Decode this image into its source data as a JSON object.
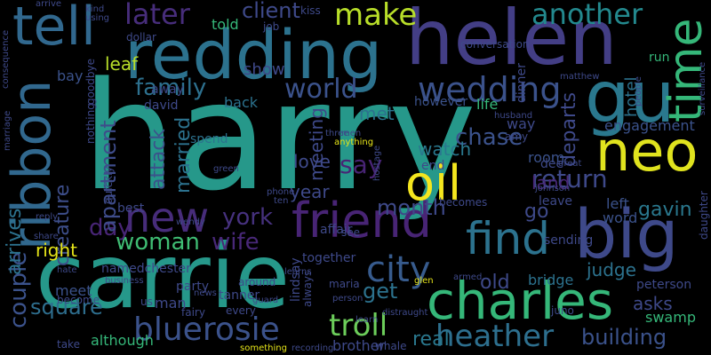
{
  "words": {
    "harry": "harry",
    "carrie": "carrie",
    "redding": "redding",
    "helen": "helen",
    "gu": "gu",
    "big": "big",
    "ribbon": "ribbon",
    "tell": "tell",
    "neo": "neo",
    "charles": "charles",
    "friend": "friend",
    "new": "new",
    "find": "find",
    "oil": "oil",
    "time": "time",
    "wedding": "wedding",
    "city": "city",
    "bluerosie": "bluerosie",
    "troll": "troll",
    "heather": "heather",
    "another": "another",
    "make": "make",
    "later": "later",
    "world": "world",
    "family": "family",
    "woman": "woman",
    "wife": "wife",
    "york": "york",
    "day": "day",
    "apartment": "apartment",
    "couple": "couple",
    "square": "square",
    "creature": "creature",
    "arrives": "arrives",
    "return": "return",
    "chase": "chase",
    "client": "client",
    "say": "say",
    "month": "month",
    "attack": "attack",
    "married": "married",
    "meeting": "meeting",
    "building": "building",
    "get": "get",
    "real": "real",
    "judge": "judge",
    "gavin": "gavin",
    "go": "go",
    "land": "land",
    "departs": "departs",
    "engagement": "engagement",
    "hotel": "hotel",
    "leaf": "leaf",
    "met": "met",
    "watch": "watch",
    "love": "love",
    "year": "year",
    "old": "old",
    "right": "right",
    "asks": "asks",
    "swamp": "swamp",
    "although": "although",
    "brother": "brother",
    "meet": "meet",
    "bridge": "bridge",
    "peterson": "peterson",
    "life": "life",
    "however": "however",
    "back": "back",
    "spend": "spend",
    "david": "david",
    "show": "show",
    "told": "told",
    "bay": "bay",
    "run": "run",
    "dinner": "dinner",
    "away": "away",
    "end": "end",
    "room": "room",
    "way": "way",
    "left": "left",
    "word": "word",
    "leave": "leave",
    "dee": "dee",
    "amy": "amy",
    "best": "best",
    "man": "man",
    "party": "party",
    "tanner": "tanner",
    "every": "every",
    "affair": "affair",
    "sending": "sending",
    "together": "together",
    "nothing": "nothing",
    "goodbye": "goodbye",
    "quickly": "quickly",
    "namedchester": "namedchester",
    "around": "around",
    "maria": "maria",
    "lindsay": "lindsay",
    "always": "always",
    "fairy": "fairy",
    "us": "us",
    "become": "become",
    "business": "business",
    "hanging": "hanging",
    "news": "news",
    "guard": "guard",
    "glen": "glen",
    "armed": "armed",
    "juno": "juno",
    "happening": "happening",
    "stay": "stay",
    "marry": "marry",
    "overhears": "overhears",
    "whale": "whale",
    "distraught": "distraught",
    "learn": "learn",
    "even": "even",
    "person": "person",
    "recording": "recording",
    "something": "something",
    "attend": "attend",
    "take": "take",
    "hate": "hate",
    "share": "share",
    "reply": "reply",
    "partner": "partner",
    "wendy": "wendy",
    "ex": "ex",
    "learns": "learns",
    "tom": "tom",
    "see": "see",
    "becomes": "becomes",
    "johnson": "johnson",
    "group": "group",
    "ring": "ring",
    "fleeing": "fleeing",
    "retreat": "retreat",
    "daughter": "daughter",
    "penthouse": "penthouse",
    "surveillance": "surveillance",
    "moment": "moment",
    "awkward": "awkward",
    "tape": "tape",
    "help": "help",
    "people": "people",
    "matthew": "matthew",
    "already": "already",
    "chairman": "chairman",
    "bury": "bury",
    "demand": "demand",
    "alexander": "alexander",
    "conversation": "conversation",
    "attempt": "attempt",
    "encounter": "encounter",
    "much": "much",
    "tv": "tv",
    "kiss": "kiss",
    "job": "job",
    "final": "final",
    "campaign": "campaign",
    "move": "move",
    "try": "try",
    "dollar": "dollar",
    "dana": "dana",
    "upon": "upon",
    "using": "using",
    "kind": "kind",
    "arrive": "arrive",
    "consequence": "consequence",
    "marriage": "marriage",
    "black": "black",
    "woody": "woody",
    "making": "making",
    "state": "state",
    "often": "often",
    "realizes": "realizes",
    "architect": "architect",
    "three": "three",
    "men": "men",
    "anything": "anything",
    "rescue": "rescue",
    "phone": "phone",
    "ten": "ten",
    "green": "green",
    "hostage": "hostage",
    "police": "police",
    "husband": "husband",
    "figure": "figure",
    "somewhere": "somewhere",
    "marries": "marries",
    "sudden": "sudden",
    "great": "great",
    "normal": "normal"
  },
  "palette": {
    "background": "#000000",
    "teal": "#26988a",
    "purple": "#46317e",
    "blue": "#31688e",
    "green": "#35b779",
    "yellow": "#fde725"
  }
}
